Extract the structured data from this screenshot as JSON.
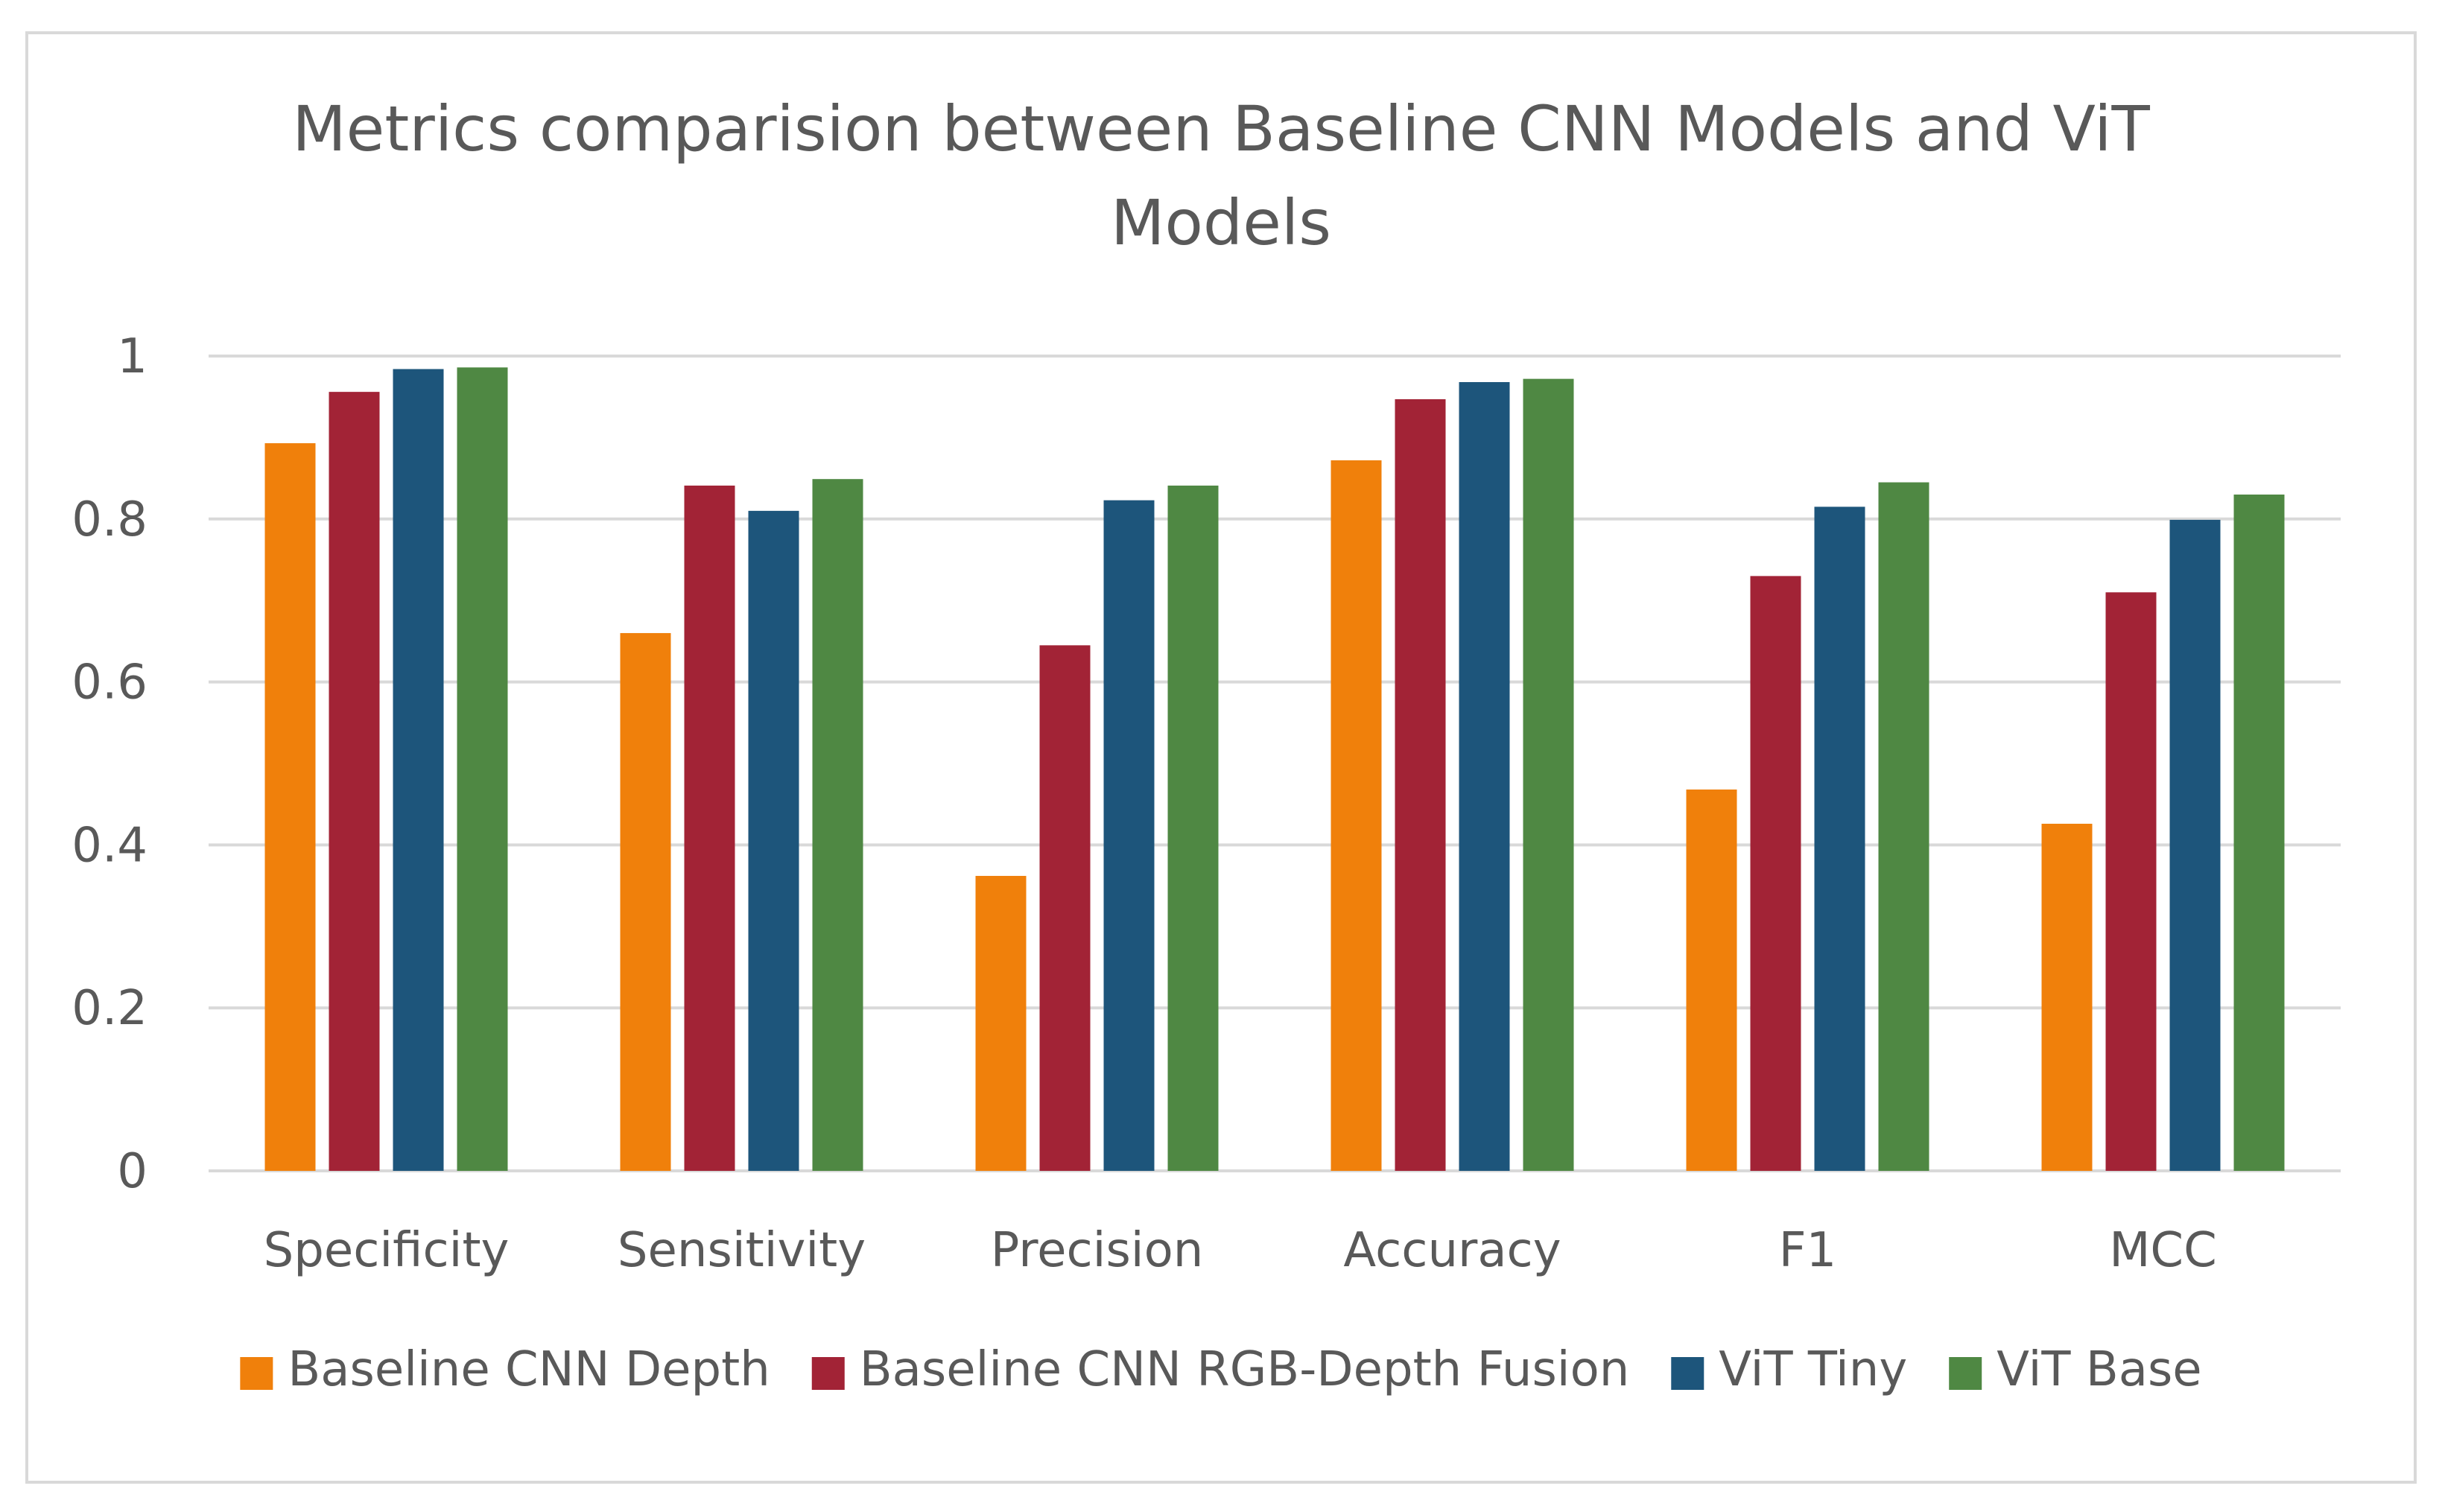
{
  "chart_data": {
    "type": "bar",
    "title": "Metrics comparision between Baseline CNN Models and ViT Models",
    "categories": [
      "Specificity",
      "Sensitivity",
      "Precision",
      "Accuracy",
      "F1",
      "MCC"
    ],
    "series": [
      {
        "name": "Baseline CNN Depth",
        "color": "#f0800b",
        "values": [
          0.893,
          0.66,
          0.362,
          0.872,
          0.468,
          0.426
        ]
      },
      {
        "name": "Baseline CNN RGB-Depth Fusion",
        "color": "#a22336",
        "values": [
          0.956,
          0.841,
          0.645,
          0.947,
          0.73,
          0.71
        ]
      },
      {
        "name": "ViT Tiny",
        "color": "#1d557b",
        "values": [
          0.984,
          0.81,
          0.823,
          0.968,
          0.815,
          0.799
        ]
      },
      {
        "name": "ViT Base",
        "color": "#4f8843",
        "values": [
          0.986,
          0.849,
          0.841,
          0.972,
          0.845,
          0.83
        ]
      }
    ],
    "ylim": [
      0,
      1
    ],
    "yticks": [
      "0",
      "0.2",
      "0.4",
      "0.6",
      "0.8",
      "1"
    ],
    "grid": true,
    "legend_position": "bottom"
  }
}
